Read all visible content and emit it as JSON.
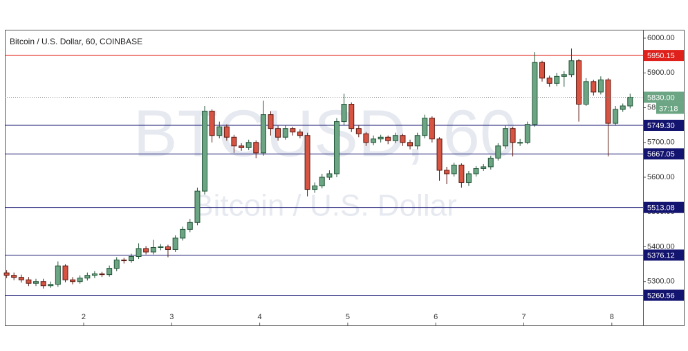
{
  "chart_data": {
    "type": "candlestick",
    "title": "Bitcoin / U.S. Dollar, 60, COINBASE",
    "watermark": "BTCUSD, 60",
    "watermark_subtitle": "Bitcoin / U.S. Dollar",
    "up_color": "#6ba583",
    "up_border": "#225437",
    "down_color": "#d75442",
    "down_border": "#5b1a13",
    "x": [
      1.125,
      1.208,
      1.292,
      1.375,
      1.458,
      1.542,
      1.625,
      1.708,
      1.792,
      1.875,
      1.958,
      2.042,
      2.125,
      2.208,
      2.292,
      2.375,
      2.458,
      2.542,
      2.625,
      2.708,
      2.792,
      2.875,
      2.958,
      3.042,
      3.125,
      3.208,
      3.292,
      3.375,
      3.458,
      3.542,
      3.625,
      3.708,
      3.792,
      3.875,
      3.958,
      4.042,
      4.125,
      4.208,
      4.292,
      4.375,
      4.458,
      4.542,
      4.625,
      4.708,
      4.792,
      4.875,
      4.958,
      5.042,
      5.125,
      5.208,
      5.292,
      5.375,
      5.458,
      5.542,
      5.625,
      5.708,
      5.792,
      5.875,
      5.958,
      6.042,
      6.125,
      6.208,
      6.292,
      6.375,
      6.458,
      6.542,
      6.625,
      6.708,
      6.792,
      6.875,
      6.958,
      7.042,
      7.125,
      7.208,
      7.292,
      7.375,
      7.458,
      7.542,
      7.625,
      7.708,
      7.792,
      7.875,
      7.958,
      8.042,
      8.125,
      8.208
    ],
    "open": [
      5325,
      5318,
      5312,
      5305,
      5295,
      5300,
      5288,
      5292,
      5345,
      5305,
      5300,
      5310,
      5318,
      5322,
      5320,
      5338,
      5362,
      5360,
      5372,
      5395,
      5385,
      5398,
      5400,
      5392,
      5425,
      5450,
      5470,
      5560,
      5790,
      5720,
      5745,
      5715,
      5690,
      5685,
      5700,
      5670,
      5780,
      5740,
      5715,
      5740,
      5730,
      5720,
      5565,
      5575,
      5600,
      5610,
      5760,
      5810,
      5740,
      5725,
      5700,
      5710,
      5715,
      5705,
      5720,
      5700,
      5690,
      5720,
      5770,
      5710,
      5620,
      5610,
      5635,
      5585,
      5610,
      5625,
      5630,
      5655,
      5690,
      5740,
      5700,
      5700,
      5752,
      5930,
      5885,
      5870,
      5890,
      5895,
      5935,
      5810,
      5875,
      5845,
      5880,
      5755,
      5795,
      5805
    ],
    "high": [
      5333,
      5326,
      5320,
      5313,
      5308,
      5308,
      5300,
      5358,
      5350,
      5313,
      5318,
      5326,
      5330,
      5328,
      5346,
      5370,
      5368,
      5380,
      5410,
      5402,
      5420,
      5408,
      5406,
      5433,
      5458,
      5480,
      5570,
      5805,
      5795,
      5760,
      5752,
      5722,
      5698,
      5708,
      5706,
      5820,
      5790,
      5748,
      5750,
      5745,
      5738,
      5728,
      5585,
      5610,
      5620,
      5770,
      5840,
      5815,
      5750,
      5730,
      5720,
      5722,
      5720,
      5728,
      5725,
      5708,
      5728,
      5780,
      5775,
      5715,
      5630,
      5642,
      5640,
      5618,
      5632,
      5638,
      5662,
      5698,
      5750,
      5745,
      5710,
      5760,
      5960,
      5935,
      5892,
      5900,
      5905,
      5970,
      5940,
      5885,
      5880,
      5890,
      5885,
      5805,
      5812,
      5840
    ],
    "low": [
      5310,
      5304,
      5297,
      5287,
      5287,
      5280,
      5282,
      5285,
      5298,
      5292,
      5294,
      5303,
      5310,
      5313,
      5314,
      5330,
      5352,
      5354,
      5365,
      5378,
      5378,
      5390,
      5370,
      5385,
      5418,
      5442,
      5462,
      5550,
      5700,
      5712,
      5705,
      5670,
      5676,
      5678,
      5655,
      5662,
      5720,
      5705,
      5708,
      5720,
      5712,
      5545,
      5555,
      5568,
      5592,
      5600,
      5750,
      5730,
      5715,
      5690,
      5692,
      5700,
      5695,
      5698,
      5690,
      5680,
      5680,
      5712,
      5700,
      5590,
      5580,
      5602,
      5570,
      5575,
      5602,
      5618,
      5622,
      5648,
      5682,
      5660,
      5690,
      5695,
      5745,
      5875,
      5860,
      5862,
      5860,
      5888,
      5760,
      5805,
      5835,
      5838,
      5660,
      5748,
      5788,
      5798
    ],
    "close": [
      5318,
      5312,
      5305,
      5295,
      5300,
      5288,
      5292,
      5345,
      5305,
      5300,
      5310,
      5318,
      5322,
      5320,
      5338,
      5362,
      5360,
      5372,
      5395,
      5385,
      5398,
      5400,
      5392,
      5425,
      5450,
      5470,
      5560,
      5790,
      5720,
      5745,
      5715,
      5690,
      5685,
      5700,
      5670,
      5780,
      5740,
      5715,
      5740,
      5730,
      5720,
      5565,
      5575,
      5600,
      5610,
      5760,
      5810,
      5740,
      5725,
      5700,
      5710,
      5715,
      5705,
      5720,
      5700,
      5690,
      5720,
      5770,
      5710,
      5620,
      5610,
      5635,
      5585,
      5610,
      5625,
      5630,
      5655,
      5690,
      5740,
      5700,
      5700,
      5752,
      5930,
      5885,
      5870,
      5890,
      5895,
      5935,
      5810,
      5875,
      5845,
      5880,
      5755,
      5795,
      5805,
      5830
    ],
    "xlim": [
      1.1045,
      8.355
    ],
    "xticks": [
      2,
      3,
      4,
      5,
      6,
      7,
      8
    ],
    "ylim": [
      5174,
      6024
    ],
    "yticks": [
      {
        "value": 6000,
        "label": "6000.00"
      },
      {
        "value": 5900,
        "label": "5900.00"
      },
      {
        "value": 5800,
        "label": "5800.00"
      },
      {
        "value": 5700,
        "label": "5700.00"
      },
      {
        "value": 5600,
        "label": "5600.00"
      },
      {
        "value": 5500,
        "label": "5500.00"
      },
      {
        "value": 5400,
        "label": "5400.00"
      },
      {
        "value": 5300,
        "label": "5300.00"
      }
    ],
    "levels": [
      {
        "value": 5950.15,
        "label": "5950.15",
        "color": "#e0201b"
      },
      {
        "value": 5749.3,
        "label": "5749.30",
        "color": "#131370"
      },
      {
        "value": 5667.05,
        "label": "5667.05",
        "color": "#131370"
      },
      {
        "value": 5513.08,
        "label": "5513.08",
        "color": "#131370"
      },
      {
        "value": 5376.12,
        "label": "5376.12",
        "color": "#131370"
      },
      {
        "value": 5260.56,
        "label": "5260.56",
        "color": "#131370"
      }
    ],
    "last_price": {
      "value": 5830,
      "label": "5830.00",
      "countdown": "37:18",
      "color": "#6ba583"
    }
  }
}
